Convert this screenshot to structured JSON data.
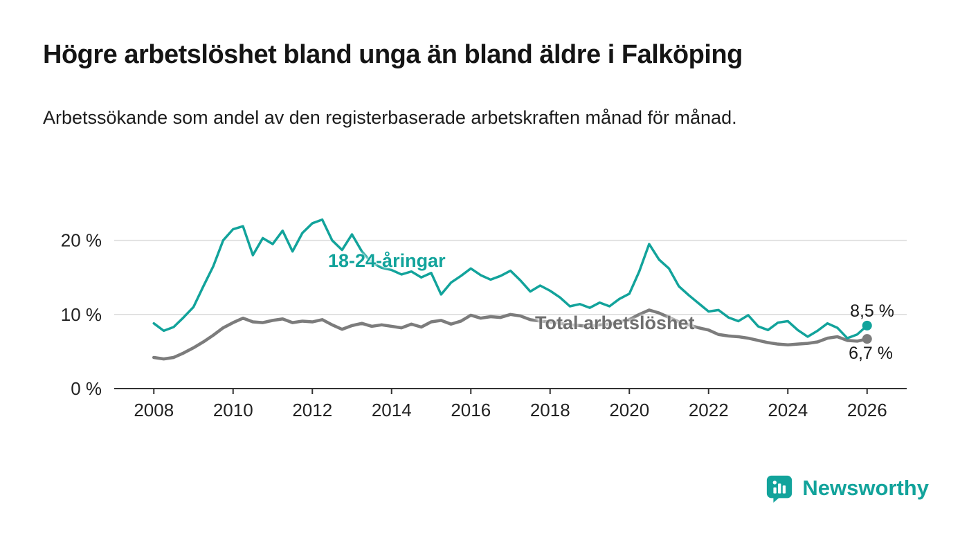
{
  "header": {
    "title": "Högre arbetslöshet bland unga än bland äldre i Falköping",
    "subtitle": "Arbetssökande som andel av den registerbaserade arbetskraften månad för månad."
  },
  "footer": {
    "brand": "Newsworthy"
  },
  "chart_data": {
    "type": "line",
    "title": "Högre arbetslöshet bland unga än bland äldre i Falköping",
    "xlabel": "",
    "ylabel": "",
    "xlim": [
      2007,
      2027
    ],
    "ylim": [
      0,
      25
    ],
    "grid": "horizontal",
    "legend_position": "inline-labels",
    "x_start": 2008,
    "x_step": 0.25,
    "x_ticks": [
      {
        "value": 2008,
        "label": "2008"
      },
      {
        "value": 2010,
        "label": "2010"
      },
      {
        "value": 2012,
        "label": "2012"
      },
      {
        "value": 2014,
        "label": "2014"
      },
      {
        "value": 2016,
        "label": "2016"
      },
      {
        "value": 2018,
        "label": "2018"
      },
      {
        "value": 2020,
        "label": "2020"
      },
      {
        "value": 2022,
        "label": "2022"
      },
      {
        "value": 2024,
        "label": "2024"
      },
      {
        "value": 2026,
        "label": "2026"
      }
    ],
    "y_ticks": [
      {
        "value": 0,
        "label": "0 %"
      },
      {
        "value": 10,
        "label": "10 %"
      },
      {
        "value": 20,
        "label": "20 %"
      }
    ],
    "colors": {
      "teal": "#12a39b",
      "gray": "#7c7c7c",
      "grid": "#dcdcdc",
      "axis": "#333333",
      "text": "#222222"
    },
    "plot": {
      "x0": 165,
      "x1": 1310,
      "y0": 562,
      "y1": 294
    },
    "series": [
      {
        "id": "total",
        "name": "Total arbetslöshet",
        "color": "#7c7c7c",
        "width": 4.5,
        "values": [
          4.2,
          4.0,
          4.2,
          4.8,
          5.5,
          6.3,
          7.2,
          8.2,
          8.9,
          9.5,
          9.0,
          8.9,
          9.2,
          9.4,
          8.9,
          9.1,
          9.0,
          9.3,
          8.6,
          8.0,
          8.5,
          8.8,
          8.4,
          8.6,
          8.4,
          8.2,
          8.7,
          8.3,
          9.0,
          9.2,
          8.7,
          9.1,
          9.9,
          9.5,
          9.7,
          9.6,
          10.0,
          9.8,
          9.3,
          9.1,
          9.0,
          8.8,
          8.6,
          8.5,
          8.4,
          8.6,
          8.7,
          9.0,
          9.3,
          10.0,
          10.6,
          10.2,
          9.6,
          9.0,
          8.6,
          8.2,
          7.9,
          7.3,
          7.1,
          7.0,
          6.8,
          6.5,
          6.2,
          6.0,
          5.9,
          6.0,
          6.1,
          6.3,
          6.8,
          7.0,
          6.5,
          6.4,
          6.7
        ]
      },
      {
        "id": "youth",
        "name": "18-24-åringar",
        "color": "#12a39b",
        "width": 3.5,
        "values": [
          8.8,
          7.8,
          8.3,
          9.6,
          11.0,
          13.8,
          16.5,
          20.0,
          21.5,
          21.9,
          18.0,
          20.3,
          19.5,
          21.3,
          18.5,
          21.0,
          22.3,
          22.8,
          20.0,
          18.7,
          20.8,
          18.5,
          17.0,
          16.3,
          16.0,
          15.4,
          15.8,
          15.0,
          15.6,
          12.7,
          14.3,
          15.2,
          16.2,
          15.3,
          14.7,
          15.2,
          15.9,
          14.6,
          13.1,
          13.9,
          13.2,
          12.3,
          11.1,
          11.4,
          10.9,
          11.6,
          11.1,
          12.1,
          12.8,
          15.8,
          19.5,
          17.4,
          16.2,
          13.8,
          12.6,
          11.5,
          10.4,
          10.6,
          9.6,
          9.1,
          9.9,
          8.4,
          7.9,
          8.9,
          9.1,
          7.9,
          7.0,
          7.8,
          8.8,
          8.2,
          6.8,
          7.3,
          8.5
        ]
      }
    ],
    "annotations": {
      "youth_label": "18-24-åringar",
      "total_label": "Total arbetslöshet",
      "youth_end": "8,5 %",
      "total_end": "6,7 %"
    }
  }
}
